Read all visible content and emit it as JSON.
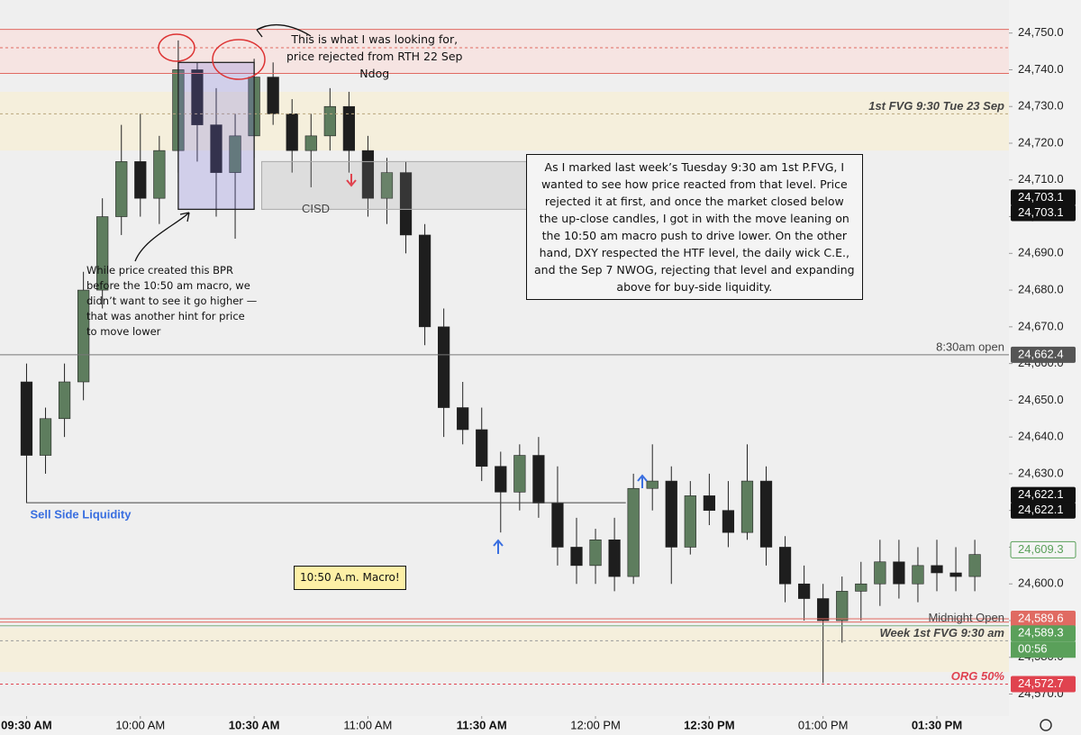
{
  "chart_data": {
    "type": "candlestick",
    "xlim": [
      563,
      829
    ],
    "ylim": [
      24564,
      24759
    ],
    "up_color": "#5e7d5e",
    "down_color": "#1e1e1e",
    "xticks": [
      {
        "value": 570,
        "label": "09:30 AM"
      },
      {
        "value": 600,
        "label": "10:00 AM"
      },
      {
        "value": 630,
        "label": "10:30 AM"
      },
      {
        "value": 660,
        "label": "11:00 AM"
      },
      {
        "value": 690,
        "label": "11:30 AM"
      },
      {
        "value": 720,
        "label": "12:00 PM"
      },
      {
        "value": 750,
        "label": "12:30 PM"
      },
      {
        "value": 780,
        "label": "01:00 PM"
      },
      {
        "value": 810,
        "label": "01:30 PM"
      }
    ],
    "yticks": [
      {
        "value": 24570,
        "label": "24,570.0"
      },
      {
        "value": 24580,
        "label": "24,580.0"
      },
      {
        "value": 24590,
        "label": "24,590.0"
      },
      {
        "value": 24600,
        "label": "24,600.0"
      },
      {
        "value": 24610,
        "label": "24,610.0"
      },
      {
        "value": 24620,
        "label": "24,620.0"
      },
      {
        "value": 24630,
        "label": "24,630.0"
      },
      {
        "value": 24640,
        "label": "24,640.0"
      },
      {
        "value": 24650,
        "label": "24,650.0"
      },
      {
        "value": 24660,
        "label": "24,660.0"
      },
      {
        "value": 24670,
        "label": "24,670.0"
      },
      {
        "value": 24680,
        "label": "24,680.0"
      },
      {
        "value": 24690,
        "label": "24,690.0"
      },
      {
        "value": 24700,
        "label": "24,700.0"
      },
      {
        "value": 24710,
        "label": "24,710.0"
      },
      {
        "value": 24720,
        "label": "24,720.0"
      },
      {
        "value": 24730,
        "label": "24,730.0"
      },
      {
        "value": 24740,
        "label": "24,740.0"
      },
      {
        "value": 24750,
        "label": "24,750.0"
      }
    ],
    "x": [
      570,
      575,
      580,
      585,
      590,
      595,
      600,
      605,
      610,
      615,
      620,
      625,
      630,
      635,
      640,
      645,
      650,
      655,
      660,
      665,
      670,
      675,
      680,
      685,
      690,
      695,
      700,
      705,
      710,
      715,
      720,
      725,
      730,
      735,
      740,
      745,
      750,
      755,
      760,
      765,
      770,
      775,
      780,
      785,
      790,
      795,
      800,
      805,
      810,
      815,
      820
    ],
    "open": [
      24655,
      24635,
      24645,
      24655,
      24680,
      24700,
      24715,
      24705,
      24718,
      24740,
      24725,
      24712,
      24722,
      24738,
      24728,
      24718,
      24722,
      24730,
      24718,
      24705,
      24712,
      24695,
      24670,
      24648,
      24642,
      24632,
      24625,
      24635,
      24622,
      24610,
      24605,
      24612,
      24602,
      24626,
      24628,
      24610,
      24624,
      24620,
      24614,
      24628,
      24610,
      24600,
      24596,
      24590,
      24598,
      24600,
      24606,
      24600,
      24605,
      24603,
      24602
    ],
    "high": [
      24660,
      24648,
      24660,
      24685,
      24705,
      24725,
      24728,
      24722,
      24748,
      24742,
      24735,
      24728,
      24743,
      24742,
      24732,
      24728,
      24735,
      24734,
      24722,
      24716,
      24715,
      24698,
      24675,
      24655,
      24648,
      24636,
      24638,
      24640,
      24632,
      24618,
      24615,
      24618,
      24630,
      24638,
      24632,
      24628,
      24630,
      24628,
      24638,
      24632,
      24613,
      24605,
      24600,
      24602,
      24606,
      24612,
      24612,
      24610,
      24612,
      24610,
      24612
    ],
    "low": [
      24622,
      24630,
      24640,
      24650,
      24675,
      24695,
      24700,
      24698,
      24712,
      24715,
      24700,
      24694,
      24716,
      24725,
      24712,
      24708,
      24718,
      24712,
      24700,
      24698,
      24690,
      24665,
      24640,
      24638,
      24628,
      24614,
      24620,
      24618,
      24605,
      24600,
      24600,
      24598,
      24600,
      24620,
      24600,
      24608,
      24616,
      24610,
      24612,
      24605,
      24595,
      24590,
      24573,
      24584,
      24590,
      24594,
      24596,
      24595,
      24598,
      24598,
      24598
    ],
    "close": [
      24635,
      24645,
      24655,
      24680,
      24700,
      24715,
      24705,
      24718,
      24740,
      24725,
      24712,
      24722,
      24738,
      24728,
      24718,
      24722,
      24730,
      24718,
      24705,
      24712,
      24695,
      24670,
      24648,
      24642,
      24632,
      24625,
      24635,
      24622,
      24610,
      24605,
      24612,
      24602,
      24626,
      24628,
      24610,
      24624,
      24620,
      24614,
      24628,
      24610,
      24600,
      24596,
      24590,
      24598,
      24600,
      24606,
      24600,
      24605,
      24603,
      24602,
      24608
    ],
    "zones": [
      {
        "from": 24739,
        "to": 24751,
        "color": "#f6e4e2"
      },
      {
        "from": 24718,
        "to": 24734,
        "color": "#f5efdc"
      },
      {
        "from": 24576,
        "to": 24588,
        "color": "#f5efdc"
      }
    ],
    "levels": [
      {
        "value": 24751,
        "color": "#e06a62",
        "dash": false
      },
      {
        "value": 24746,
        "color": "#e06a62",
        "dash": true
      },
      {
        "value": 24739,
        "color": "#e06a62",
        "dash": false
      },
      {
        "value": 24728,
        "color": "#b9a57c",
        "dash": true,
        "label": "1st FVG 9:30  Tue 23 Sep"
      },
      {
        "value": 24662.4,
        "color": "#777777",
        "dash": false,
        "label": "8:30am open"
      },
      {
        "value": 24590.5,
        "color": "#e06a62",
        "dash": false
      },
      {
        "value": 24589.6,
        "color": "#e06a62",
        "dash": false
      },
      {
        "value": 24588.6,
        "color": "#7fae7f",
        "dash": false,
        "label": "Midnight Open"
      },
      {
        "value": 24584.5,
        "color": "#999999",
        "dash": true,
        "label": "Week 1st FVG 9:30 am"
      },
      {
        "value": 24572.7,
        "color": "#e0434f",
        "dash": true,
        "label": "ORG 50%"
      }
    ],
    "price_badges": [
      {
        "value": 24705.2,
        "label": "24,703.1",
        "bg": "#111111",
        "fg": "#ffffff"
      },
      {
        "value": 24701.0,
        "label": "24,703.1",
        "bg": "#111111",
        "fg": "#ffffff"
      },
      {
        "value": 24662.4,
        "label": "24,662.4",
        "bg": "#555555",
        "fg": "#ffffff"
      },
      {
        "value": 24624.2,
        "label": "24,622.1",
        "bg": "#111111",
        "fg": "#ffffff"
      },
      {
        "value": 24620.0,
        "label": "24,622.1",
        "bg": "#111111",
        "fg": "#ffffff"
      },
      {
        "value": 24609.3,
        "label": "24,609.3",
        "bg": "#f4f4f4",
        "fg": "#5aa05a"
      },
      {
        "value": 24590.5,
        "label": "24,589.6",
        "bg": "#e06a62",
        "fg": "#ffffff"
      },
      {
        "value": 24586.5,
        "label": "24,589.3",
        "bg": "#5aa05a",
        "fg": "#ffffff"
      },
      {
        "value": 24572.7,
        "label": "24,572.7",
        "bg": "#e0434f",
        "fg": "#ffffff"
      }
    ],
    "countdown": "00:56",
    "sell_side": {
      "value": 24622.1,
      "from": 570,
      "to": 728,
      "label": "Sell Side Liquidity"
    },
    "bpr": {
      "from": 610,
      "to": 630,
      "top": 24742,
      "bottom": 24702
    },
    "cisd": {
      "from": 632,
      "to": 702,
      "top": 24715,
      "bottom": 24702,
      "label": "CISD"
    },
    "macro_label": "10:50 A.m. Macro!",
    "top_note": [
      "This is what I was looking for,",
      "price rejected from RTH 22 Sep",
      "Ndog"
    ],
    "bpr_note": [
      "While price created this BPR",
      "before the 10:50 am macro, we",
      "didn’t want to see it go higher —",
      "that was another hint for price",
      "to move lower"
    ],
    "main_note": [
      "As I marked last week’s Tuesday 9:30 am 1st P.FVG, I",
      "wanted to see how price reacted from that level. Price",
      "rejected it at first, and once the market closed below",
      "the up-close candles, I got in with the move leaning on",
      "the 10:50 am macro push to drive lower. On the other",
      "hand, DXY respected the HTF level, the daily wick C.E.,",
      "and the Sep 7 NWOG, rejecting that level and expanding",
      "above for buy-side liquidity."
    ]
  }
}
